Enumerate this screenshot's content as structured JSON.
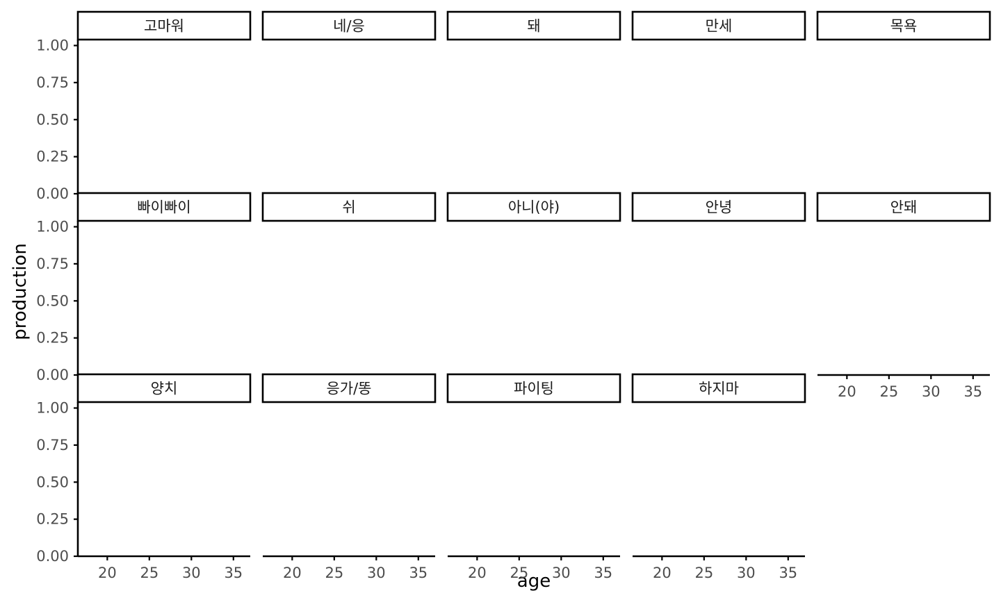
{
  "chart_data": {
    "type": "line",
    "xlabel": "age",
    "ylabel": "production",
    "xlim": [
      16.5,
      37
    ],
    "ylim": [
      0,
      1.04
    ],
    "x_ticks": [
      20,
      25,
      30,
      35
    ],
    "x_tick_labels": [
      "20",
      "25",
      "30",
      "35"
    ],
    "y_ticks": [
      0,
      0.25,
      0.5,
      0.75,
      1
    ],
    "y_tick_labels": [
      "0.00",
      "0.25",
      "0.50",
      "0.75",
      "1.00"
    ],
    "grid": false,
    "layout": {
      "rows": 3,
      "cols": 5
    },
    "panels": [
      {
        "label": "고마워",
        "points": []
      },
      {
        "label": "네/응",
        "points": []
      },
      {
        "label": "돼",
        "points": []
      },
      {
        "label": "만세",
        "points": []
      },
      {
        "label": "목욕",
        "points": []
      },
      {
        "label": "빠이빠이",
        "points": []
      },
      {
        "label": "쉬",
        "points": []
      },
      {
        "label": "아니(야)",
        "points": []
      },
      {
        "label": "안녕",
        "points": []
      },
      {
        "label": "안돼",
        "points": []
      },
      {
        "label": "양치",
        "points": []
      },
      {
        "label": "응가/똥",
        "points": []
      },
      {
        "label": "파이팅",
        "points": []
      },
      {
        "label": "하지마",
        "points": []
      }
    ]
  }
}
